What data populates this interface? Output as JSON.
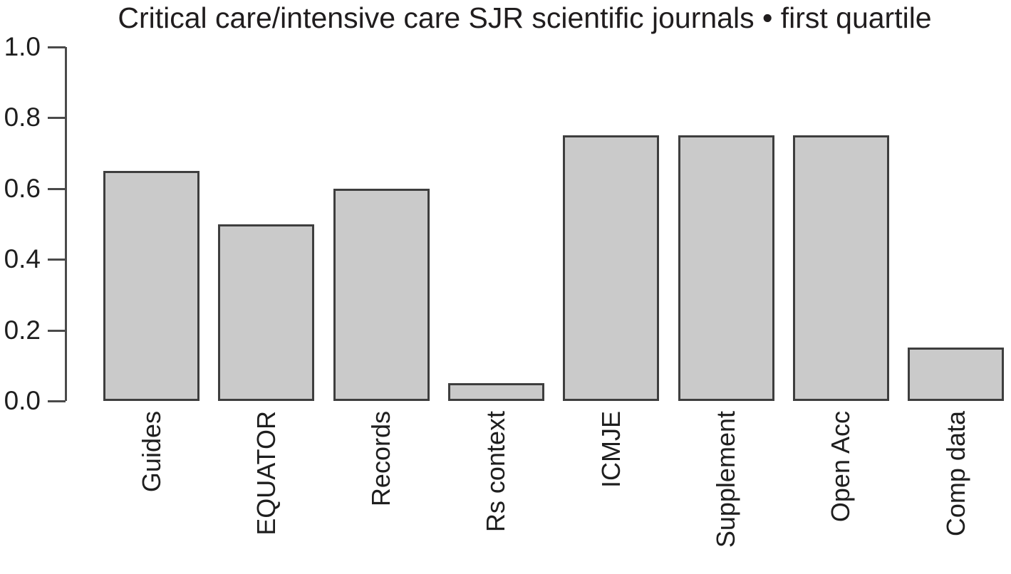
{
  "chart_data": {
    "type": "bar",
    "title": "Critical care/intensive care SJR scientific journals • first quartile",
    "categories": [
      "Guides",
      "EQUATOR",
      "Records",
      "Rs context",
      "ICMJE",
      "Supplement",
      "Open Acc",
      "Comp data"
    ],
    "values": [
      0.65,
      0.5,
      0.6,
      0.05,
      0.75,
      0.75,
      0.75,
      0.15
    ],
    "xlabel": "",
    "ylabel": "",
    "ylim": [
      0.0,
      1.0
    ],
    "yticks": [
      0.0,
      0.2,
      0.4,
      0.6,
      0.8,
      1.0
    ],
    "ytick_labels": [
      "0.0",
      "0.2",
      "0.4",
      "0.6",
      "0.8",
      "1.0"
    ],
    "grid": false,
    "legend": null,
    "x_label_rotation_deg": 90,
    "colors": {
      "bar_fill": "#cacaca",
      "bar_border": "#3e3e3e",
      "axis": "#4a4a4a",
      "text": "#1e1e1e",
      "background": "#ffffff"
    }
  }
}
